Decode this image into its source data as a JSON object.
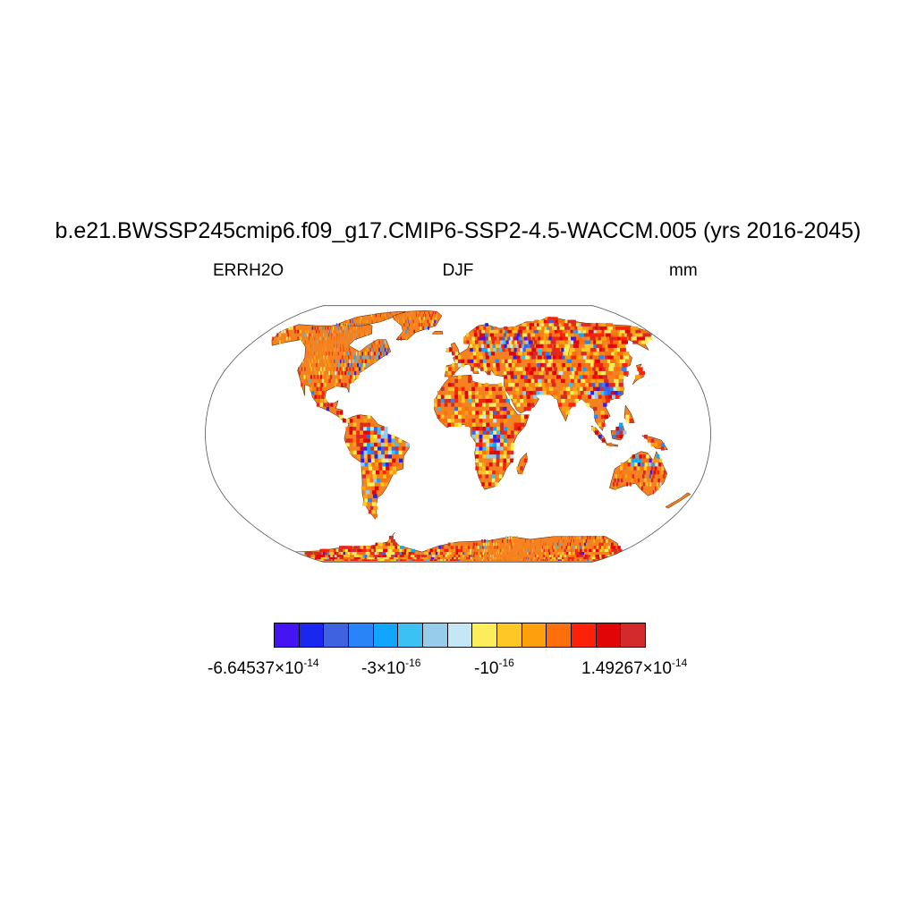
{
  "header": {
    "title": "b.e21.BWSSP245cmip6.f09_g17.CMIP6-SSP2-4.5-WACCM.005 (yrs 2016-2045)",
    "left": "ERRH2O",
    "center": "DJF",
    "right": "mm"
  },
  "colorbar": {
    "colors": [
      "#4414f2",
      "#1a28ef",
      "#3f62e0",
      "#2984f8",
      "#11a5fc",
      "#3cc1f4",
      "#97cdea",
      "#c5e6f5",
      "#fcee5a",
      "#fdc825",
      "#fca00e",
      "#fc6f0a",
      "#fb2209",
      "#e10508",
      "#d32a2b"
    ],
    "labels": [
      {
        "mant": "-6.64537×10",
        "exp": "-14"
      },
      {
        "mant": "-3×10",
        "exp": "-16"
      },
      {
        "mant": "-10",
        "exp": "-16"
      },
      {
        "mant": "1.49267×10",
        "exp": "-14"
      }
    ]
  },
  "map": {
    "projection": "robinson",
    "land_color": "#f58220",
    "outline_color": "#555555"
  }
}
